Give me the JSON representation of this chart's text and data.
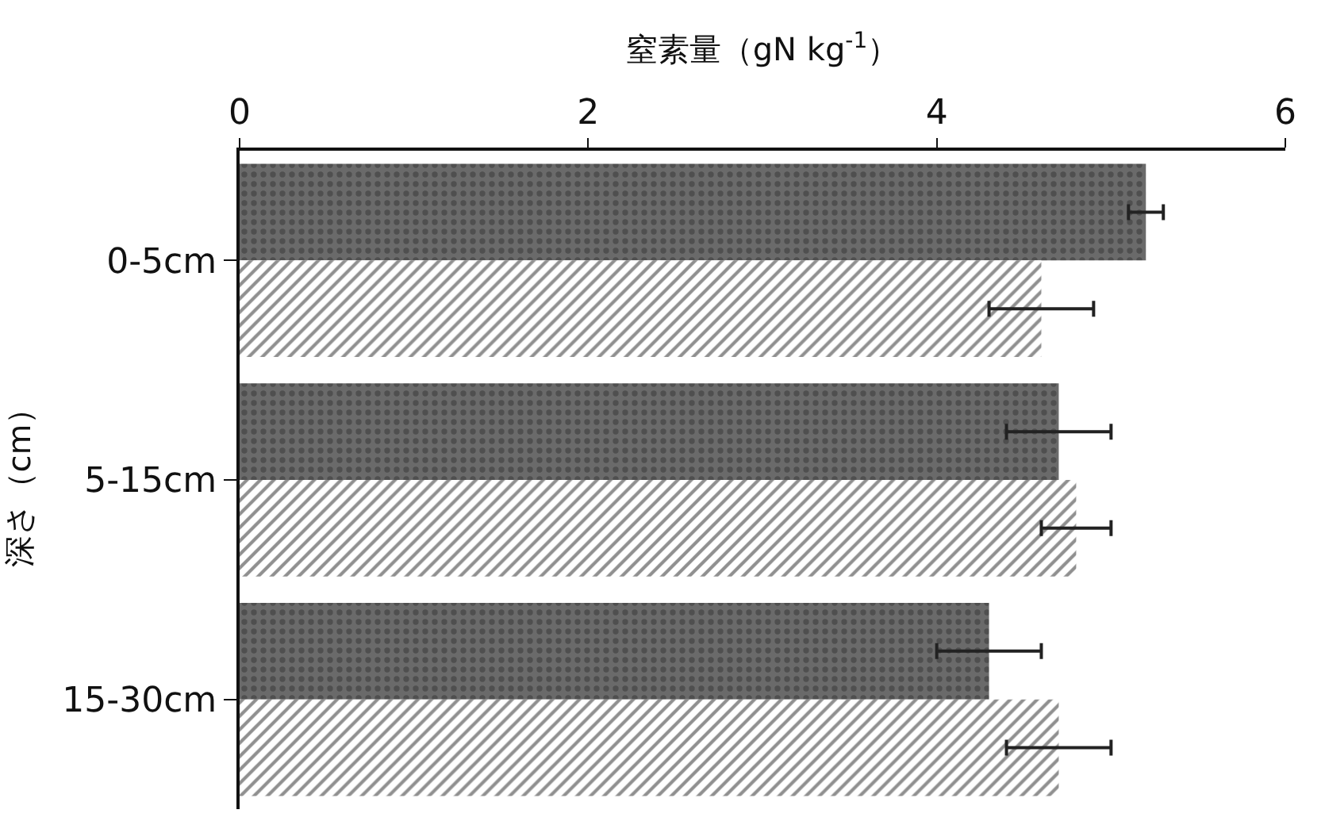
{
  "chart_data": {
    "type": "bar",
    "orientation": "horizontal",
    "xlabel": "窒素量（gN kg$^{-1}$）",
    "ylabel": "深さ（cm）",
    "categories": [
      "0-5cm",
      "5-15cm",
      "15-30cm"
    ],
    "series": [
      {
        "color": "#6a6a6a",
        "values": [
          5.2,
          4.7,
          4.3
        ],
        "errors": [
          0.1,
          0.3,
          0.3
        ]
      },
      {
        "color": "#ffffff",
        "values": [
          4.6,
          4.8,
          4.7
        ],
        "errors": [
          0.3,
          0.2,
          0.3
        ]
      }
    ],
    "xlim": [
      0,
      6
    ],
    "xticks": [
      0,
      2,
      4,
      6
    ]
  }
}
